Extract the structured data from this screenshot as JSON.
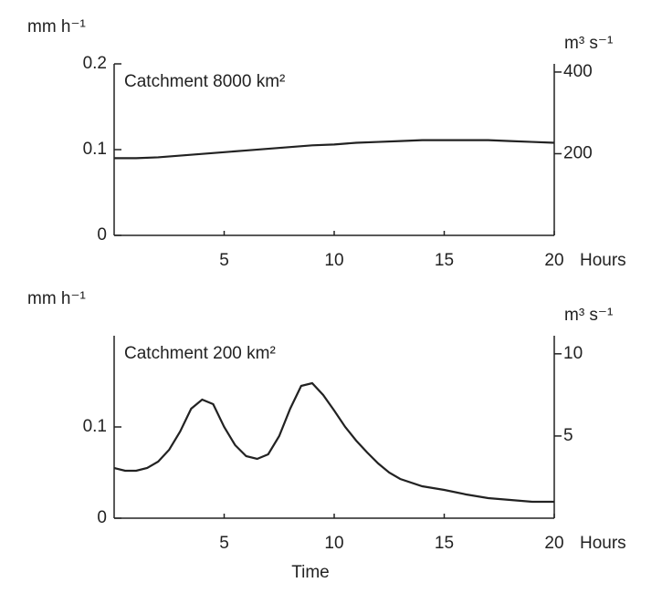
{
  "chart_data": [
    {
      "type": "line",
      "ylabel": "mm h⁻¹",
      "y2label": "m³ s⁻¹",
      "annotation": "Catchment  8000 km²",
      "x_unit": "Hours",
      "xlim": [
        0,
        20
      ],
      "xticks": [
        5,
        10,
        15,
        20
      ],
      "ylim": [
        0,
        0.2
      ],
      "yticks": [
        0,
        0.1,
        0.2
      ],
      "y2lim": [
        0,
        420
      ],
      "y2ticks": [
        200,
        400
      ],
      "series": [
        {
          "color": "#222222",
          "x": [
            0,
            1,
            2,
            3,
            4,
            5,
            6,
            7,
            8,
            9,
            10,
            11,
            12,
            13,
            14,
            15,
            16,
            17,
            18,
            19,
            20
          ],
          "values": [
            0.09,
            0.09,
            0.091,
            0.093,
            0.095,
            0.097,
            0.099,
            0.101,
            0.103,
            0.105,
            0.106,
            0.108,
            0.109,
            0.11,
            0.111,
            0.111,
            0.111,
            0.111,
            0.11,
            0.109,
            0.108
          ]
        }
      ]
    },
    {
      "type": "line",
      "ylabel": "mm h⁻¹",
      "y2label": "m³ s⁻¹",
      "annotation": "Catchment  200 km²",
      "x_unit": "Hours",
      "xlabel": "Time",
      "xlim": [
        0,
        20
      ],
      "xticks": [
        5,
        10,
        15,
        20
      ],
      "ylim": [
        0,
        0.2
      ],
      "yticks": [
        0,
        0.1
      ],
      "y2lim": [
        0,
        11.1
      ],
      "y2ticks": [
        5,
        10
      ],
      "series": [
        {
          "color": "#222222",
          "x": [
            0,
            0.5,
            1,
            1.5,
            2,
            2.5,
            3,
            3.5,
            4,
            4.5,
            5,
            5.5,
            6,
            6.5,
            7,
            7.5,
            8,
            8.5,
            9,
            9.5,
            10,
            10.5,
            11,
            11.5,
            12,
            12.5,
            13,
            14,
            15,
            16,
            17,
            18,
            19,
            20
          ],
          "values": [
            0.055,
            0.052,
            0.052,
            0.055,
            0.062,
            0.075,
            0.095,
            0.12,
            0.13,
            0.125,
            0.1,
            0.08,
            0.068,
            0.065,
            0.07,
            0.09,
            0.12,
            0.145,
            0.148,
            0.135,
            0.118,
            0.1,
            0.085,
            0.072,
            0.06,
            0.05,
            0.043,
            0.035,
            0.031,
            0.026,
            0.022,
            0.02,
            0.018,
            0.018
          ]
        }
      ]
    }
  ]
}
